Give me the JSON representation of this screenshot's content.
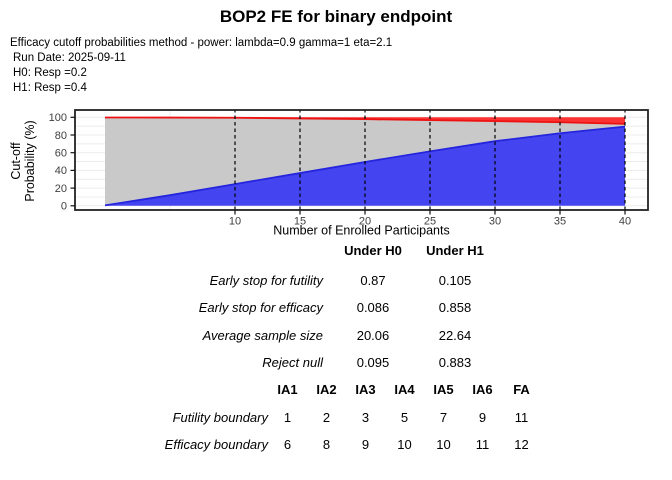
{
  "header": {
    "title": "BOP2 FE for binary endpoint",
    "subtitle_lines": [
      "Efficacy cutoff probabilities method - power: lambda=0.9 gamma=1 eta=2.1",
      "Run Date: 2025-09-11",
      "H0: Resp =0.2",
      "H1: Resp =0.4"
    ]
  },
  "chart_data": {
    "type": "area",
    "title": "",
    "xlabel": "Number of Enrolled Participants",
    "ylabel_lines": [
      "Cut-off",
      "Probability (%)"
    ],
    "x_ticks": [
      10,
      15,
      20,
      25,
      30,
      35,
      40
    ],
    "y_ticks": [
      0,
      20,
      40,
      60,
      80,
      100
    ],
    "xlim": [
      -2.3,
      42
    ],
    "ylim": [
      -5,
      105
    ],
    "grid": true,
    "legend": false,
    "interim_analysis_x": [
      10,
      15,
      20,
      25,
      30,
      35,
      40
    ],
    "x": [
      0,
      5,
      10,
      15,
      20,
      25,
      30,
      35,
      40
    ],
    "series": [
      {
        "name": "futility-stop-cutoff",
        "role": "lower-edge",
        "values": [
          0.5,
          12,
          24.5,
          37,
          49.5,
          61.5,
          73,
          82,
          89.5
        ],
        "fill": "#4444F0",
        "line": "#2525DE"
      },
      {
        "name": "efficacy-stop-cutoff",
        "role": "upper-edge",
        "values": [
          99.8,
          99.7,
          99.5,
          98.7,
          97.9,
          96.8,
          95.7,
          94.4,
          92.6
        ],
        "fill": "#FB3333",
        "line": "#EE1111"
      },
      {
        "name": "continue-region",
        "role": "between",
        "values": null,
        "fill": "#C9C9C9"
      }
    ],
    "colors": {
      "grid": "#ECECEC",
      "border": "#222222",
      "tick_text": "#404040",
      "dashed_line": "#000000"
    }
  },
  "oc_table": {
    "col_headers": [
      "Under H0",
      "Under H1"
    ],
    "rows": [
      {
        "label": "Early stop for futility",
        "h0": "0.87",
        "h1": "0.105"
      },
      {
        "label": "Early stop for efficacy",
        "h0": "0.086",
        "h1": "0.858"
      },
      {
        "label": "Average sample size",
        "h0": "20.06",
        "h1": "22.64"
      },
      {
        "label": "Reject null",
        "h0": "0.095",
        "h1": "0.883"
      }
    ]
  },
  "boundary_table": {
    "col_headers": [
      "IA1",
      "IA2",
      "IA3",
      "IA4",
      "IA5",
      "IA6",
      "FA"
    ],
    "rows": [
      {
        "label": "Futility boundary",
        "values": [
          "1",
          "2",
          "3",
          "5",
          "7",
          "9",
          "11"
        ]
      },
      {
        "label": "Efficacy boundary",
        "values": [
          "6",
          "8",
          "9",
          "10",
          "10",
          "11",
          "12"
        ]
      }
    ]
  }
}
